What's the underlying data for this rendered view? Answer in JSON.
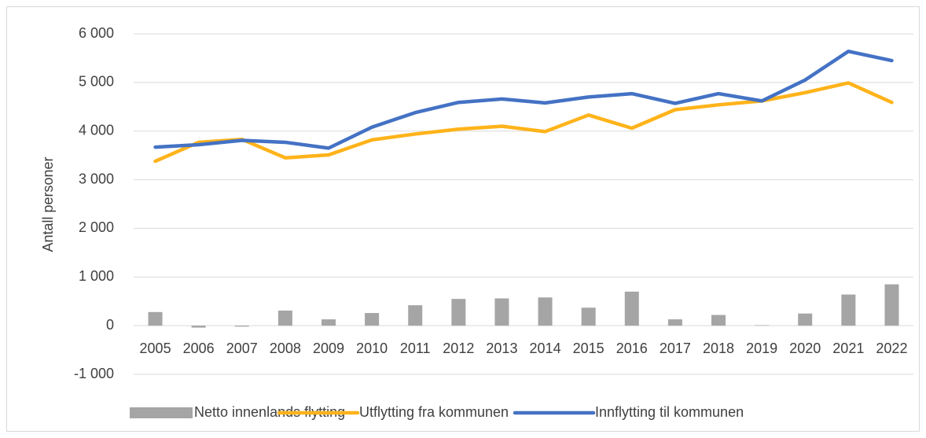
{
  "chart_data": {
    "type": "bar-line",
    "y_label": "Antall personer",
    "categories": [
      "2005",
      "2006",
      "2007",
      "2008",
      "2009",
      "2010",
      "2011",
      "2012",
      "2013",
      "2014",
      "2015",
      "2016",
      "2017",
      "2018",
      "2019",
      "2020",
      "2021",
      "2022"
    ],
    "series": [
      {
        "name": "Netto innenlands flytting",
        "type": "bar",
        "color": "#a5a5a5",
        "values": [
          280,
          -40,
          -20,
          310,
          130,
          260,
          420,
          550,
          560,
          580,
          370,
          700,
          130,
          220,
          10,
          250,
          640,
          850
        ]
      },
      {
        "name": "Utflytting fra kommunen",
        "type": "line",
        "color": "#ffb31a",
        "values": [
          3380,
          3770,
          3830,
          3450,
          3510,
          3820,
          3940,
          4040,
          4100,
          3990,
          4330,
          4060,
          4440,
          4540,
          4620,
          4790,
          4990,
          4590
        ]
      },
      {
        "name": "Innflytting til kommunen",
        "type": "line",
        "color": "#4472c4",
        "values": [
          3670,
          3720,
          3810,
          3770,
          3650,
          4080,
          4380,
          4590,
          4660,
          4580,
          4700,
          4770,
          4570,
          4770,
          4620,
          5050,
          5640,
          5450
        ]
      }
    ],
    "ylim": [
      -1000,
      6000
    ],
    "yticks": [
      {
        "value": -1000,
        "label": "-1 000"
      },
      0,
      {
        "value": 1000,
        "label": "1 000"
      },
      {
        "value": 2000,
        "label": "2 000"
      },
      {
        "value": 3000,
        "label": "3 000"
      },
      {
        "value": 4000,
        "label": "4 000"
      },
      {
        "value": 5000,
        "label": "5 000"
      },
      {
        "value": 6000,
        "label": "6 000"
      }
    ],
    "grid": true,
    "legend": "bottom"
  }
}
